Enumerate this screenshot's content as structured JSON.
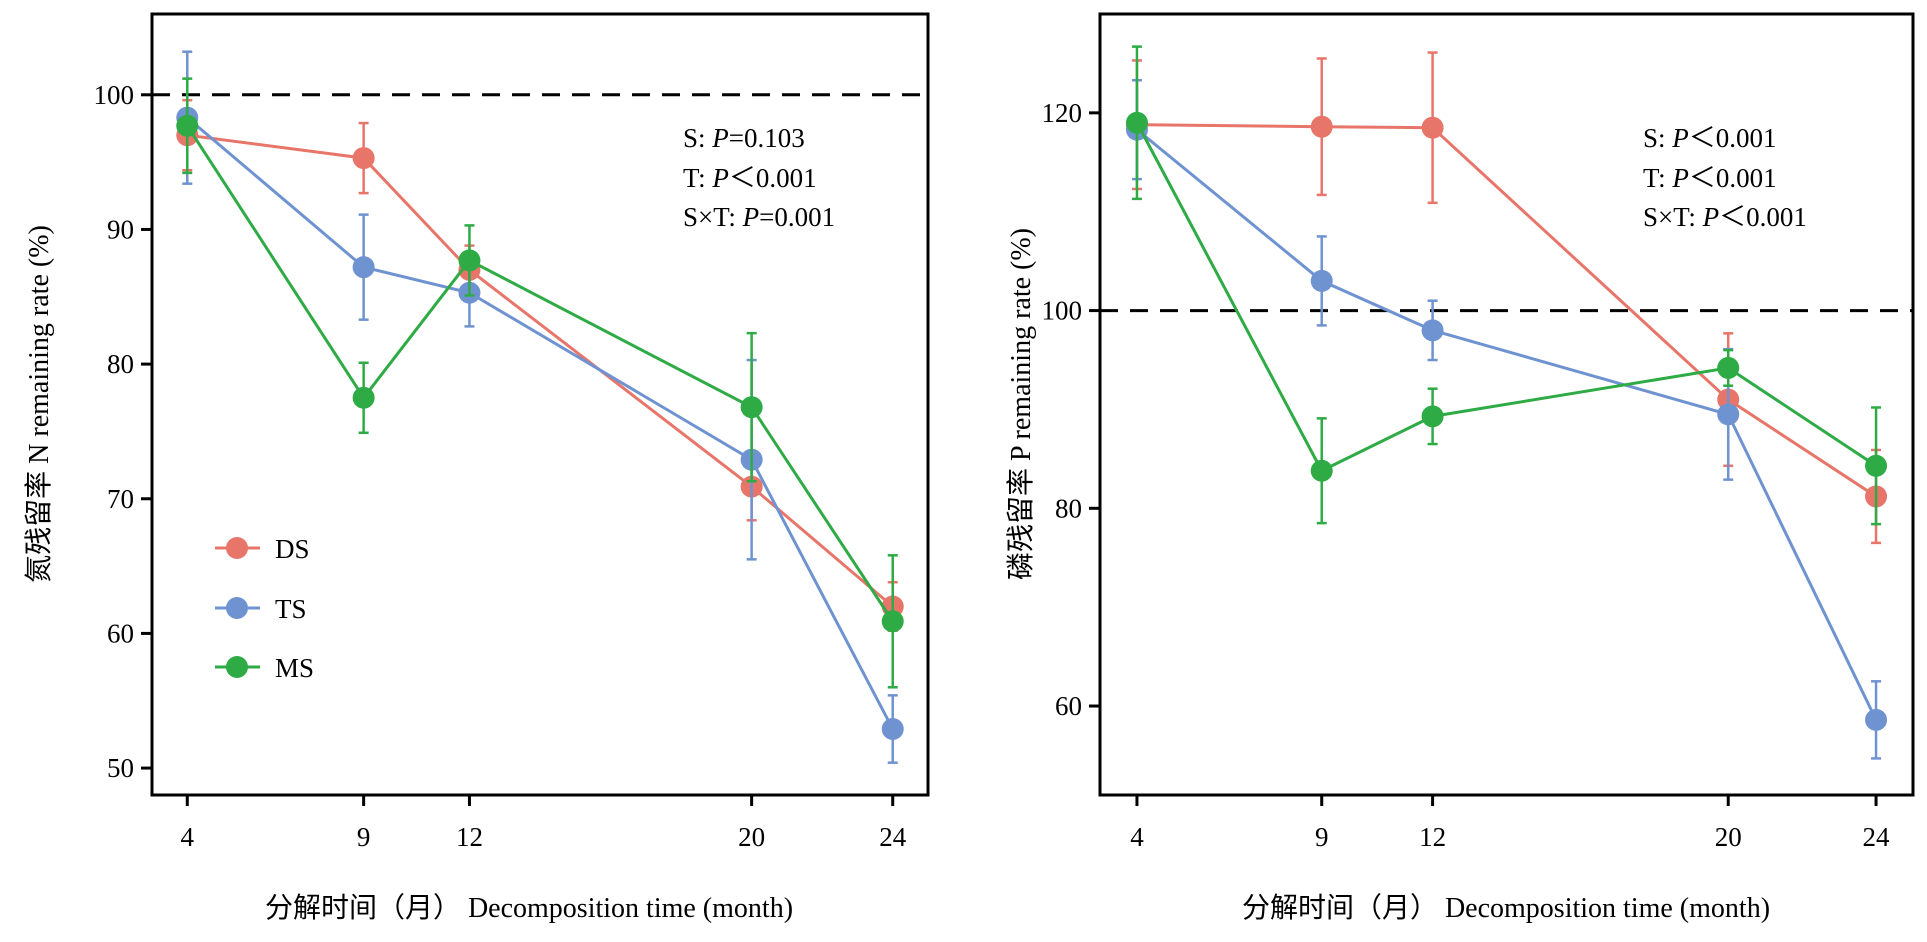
{
  "colors": {
    "DS": "#e8756a",
    "TS": "#6f93d1",
    "MS": "#2eab45",
    "axis": "#000000"
  },
  "chart_data": [
    {
      "type": "line",
      "xlabel": "分解时间（月） Decomposition time (month)",
      "ylabel": "氮残留率 N remaining rate (%)",
      "x": [
        4,
        9,
        12,
        20,
        24
      ],
      "xticks": [
        "4",
        "9",
        "12",
        "20",
        "24"
      ],
      "xlim": [
        3,
        25
      ],
      "ylim": [
        48,
        106
      ],
      "yticks": [
        "50",
        "60",
        "70",
        "80",
        "90",
        "100"
      ],
      "reference_line": 100,
      "legend_position": "bottom-left",
      "stats": [
        {
          "prefix": "S: ",
          "p": "P",
          "suffix": "=0.103"
        },
        {
          "prefix": "T: ",
          "p": "P",
          "suffix": "＜0.001"
        },
        {
          "prefix": "S×T: ",
          "p": "P",
          "suffix": "=0.001"
        }
      ],
      "series": [
        {
          "name": "DS",
          "values": [
            97.0,
            95.3,
            87.0,
            70.9,
            62.0
          ],
          "err": [
            2.6,
            2.6,
            1.8,
            2.5,
            1.8
          ]
        },
        {
          "name": "TS",
          "values": [
            98.3,
            87.2,
            85.3,
            72.9,
            52.9
          ],
          "err": [
            4.9,
            3.9,
            2.5,
            7.4,
            2.5
          ]
        },
        {
          "name": "MS",
          "values": [
            97.7,
            77.5,
            87.7,
            76.8,
            60.9
          ],
          "err": [
            3.5,
            2.6,
            2.6,
            5.5,
            4.9
          ]
        }
      ]
    },
    {
      "type": "line",
      "xlabel": "分解时间（月） Decomposition time (month)",
      "ylabel": "磷残留率 P remaining rate (%)",
      "x": [
        4,
        9,
        12,
        20,
        24
      ],
      "xticks": [
        "4",
        "9",
        "12",
        "20",
        "24"
      ],
      "xlim": [
        3,
        25
      ],
      "ylim": [
        51,
        130
      ],
      "yticks": [
        "60",
        "80",
        "100",
        "120"
      ],
      "reference_line": 100,
      "stats": [
        {
          "prefix": "S: ",
          "p": "P",
          "suffix": "＜0.001"
        },
        {
          "prefix": "T: ",
          "p": "P",
          "suffix": "＜0.001"
        },
        {
          "prefix": "S×T: ",
          "p": "P",
          "suffix": "＜0.001"
        }
      ],
      "series": [
        {
          "name": "DS",
          "values": [
            118.8,
            118.6,
            118.5,
            91.0,
            81.2
          ],
          "err": [
            6.5,
            6.9,
            7.6,
            6.7,
            4.7
          ]
        },
        {
          "name": "TS",
          "values": [
            118.3,
            103.0,
            98.0,
            89.5,
            58.6
          ],
          "err": [
            5.0,
            4.5,
            3.0,
            6.6,
            3.9
          ]
        },
        {
          "name": "MS",
          "values": [
            119.0,
            83.8,
            89.3,
            94.2,
            84.3
          ],
          "err": [
            7.7,
            5.3,
            2.8,
            1.8,
            5.9
          ]
        }
      ]
    }
  ]
}
